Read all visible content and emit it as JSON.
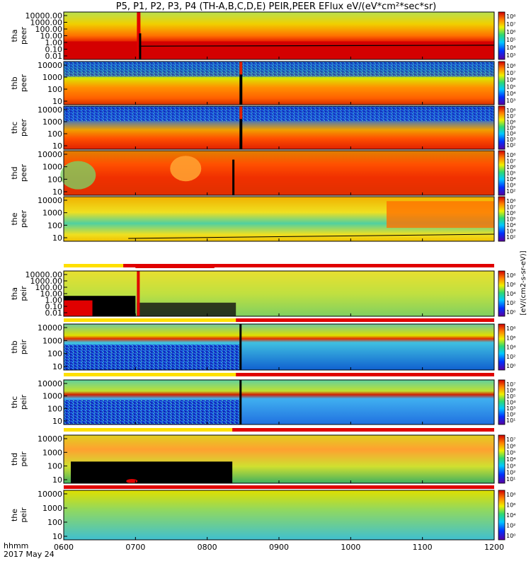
{
  "chart_data": {
    "type": "heatmap",
    "title": "P5, P1, P2, P3, P4 (TH-A,B,C,D,E) PEIR,PEER EFlux eV/(eV*cm²*sec*sr)",
    "x_axis": {
      "ticks": [
        "0600",
        "0700",
        "0800",
        "0900",
        "1000",
        "1100",
        "1200"
      ],
      "range": [
        "0600",
        "1200"
      ],
      "units_label": "hhmm",
      "date_label": "2017 May 24"
    },
    "colorbar_label": "[eV/(cm2-s-sr-eV)]",
    "panels": [
      {
        "label": "tha peer",
        "probe": "tha",
        "species": "peer",
        "yticks": [
          "10000.00",
          "1000.00",
          "100.00",
          "10.00",
          "1.00",
          "0.10",
          "0.01"
        ],
        "cbar_ticks": [
          "10⁸",
          "10⁷",
          "10⁶",
          "10⁵",
          "10⁴",
          "10³"
        ]
      },
      {
        "label": "thb peer",
        "probe": "thb",
        "species": "peer",
        "yticks": [
          "10000",
          "1000",
          "100",
          "10"
        ],
        "cbar_ticks": [
          "10⁸",
          "10⁷",
          "10⁶",
          "10⁵",
          "10⁴",
          "10³"
        ]
      },
      {
        "label": "thc peer",
        "probe": "thc",
        "species": "peer",
        "yticks": [
          "10000",
          "1000",
          "100",
          "10"
        ],
        "cbar_ticks": [
          "10⁸",
          "10⁷",
          "10⁶",
          "10⁵",
          "10⁴",
          "10³",
          "10²"
        ]
      },
      {
        "label": "thd peer",
        "probe": "thd",
        "species": "peer",
        "yticks": [
          "10000",
          "1000",
          "100",
          "10"
        ],
        "cbar_ticks": [
          "10⁸",
          "10⁷",
          "10⁶",
          "10⁵",
          "10⁴",
          "10³",
          "10²"
        ]
      },
      {
        "label": "the peer",
        "probe": "the",
        "species": "peer",
        "yticks": [
          "10000",
          "1000",
          "100",
          "10"
        ],
        "cbar_ticks": [
          "10⁸",
          "10⁷",
          "10⁶",
          "10⁵",
          "10⁴",
          "10³",
          "10²"
        ]
      },
      {
        "label": "tha peir",
        "probe": "tha",
        "species": "peir",
        "yticks": [
          "10000.00",
          "1000.00",
          "100.00",
          "10.00",
          "1.00",
          "0.10",
          "0.01"
        ],
        "cbar_ticks": [
          "10⁸",
          "10⁶",
          "10⁴",
          "10²",
          "10⁰"
        ]
      },
      {
        "label": "thb peir",
        "probe": "thb",
        "species": "peir",
        "yticks": [
          "10000",
          "1000",
          "100",
          "10"
        ],
        "cbar_ticks": [
          "10⁸",
          "10⁶",
          "10⁴",
          "10²",
          "10⁰"
        ]
      },
      {
        "label": "thc peir",
        "probe": "thc",
        "species": "peir",
        "yticks": [
          "10000",
          "1000",
          "100",
          "10"
        ],
        "cbar_ticks": [
          "10⁷",
          "10⁶",
          "10⁵",
          "10⁴",
          "10³",
          "10²",
          "10¹"
        ]
      },
      {
        "label": "thd peir",
        "probe": "thd",
        "species": "peir",
        "yticks": [
          "10000",
          "1000",
          "100",
          "10"
        ],
        "cbar_ticks": [
          "10⁷",
          "10⁶",
          "10⁵",
          "10⁴",
          "10³",
          "10²",
          "10¹"
        ]
      },
      {
        "label": "the peir",
        "probe": "the",
        "species": "peir",
        "yticks": [
          "10000",
          "1000",
          "100",
          "10"
        ],
        "cbar_ticks": [
          "10⁸",
          "10⁶",
          "10⁴",
          "10²",
          "10⁰"
        ]
      }
    ]
  }
}
